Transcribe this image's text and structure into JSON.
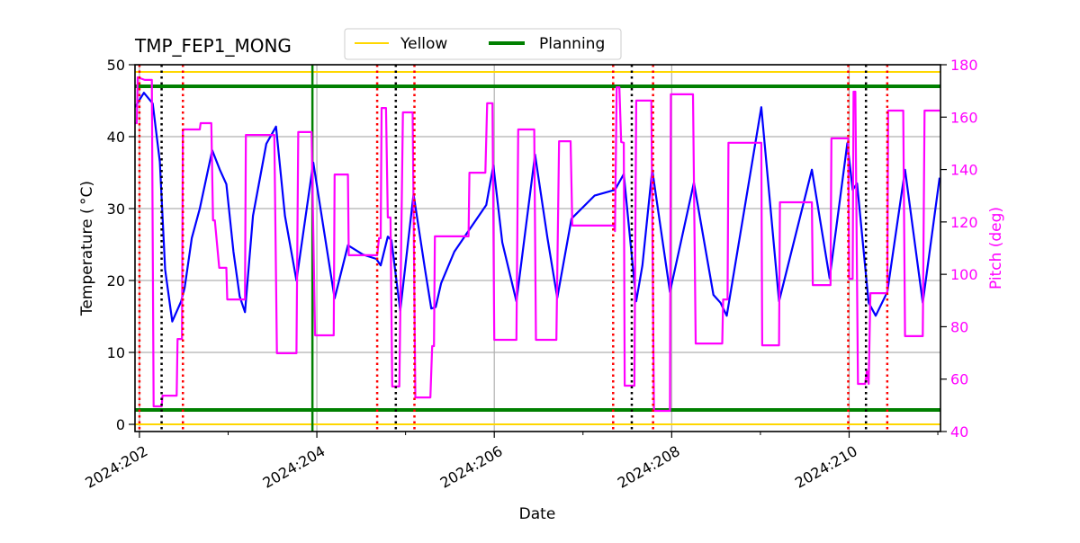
{
  "chart_data": {
    "type": "line",
    "title": "TMP_FEP1_MONG",
    "xlabel": "Date",
    "ylabel": "Temperature ($^\\circ$C)",
    "ylabel_display": "Temperature ( °C)",
    "y2label": "Pitch (deg)",
    "xlim": [
      201.95,
      211.03
    ],
    "ylim": [
      -1,
      50
    ],
    "y2lim": [
      40,
      180
    ],
    "x_ticks": [
      202,
      204,
      206,
      208,
      210
    ],
    "x_minor_ticks": [
      203,
      205,
      207,
      209,
      211
    ],
    "x_tick_labels": [
      "2024:202",
      "2024:204",
      "2024:206",
      "2024:208",
      "2024:210"
    ],
    "y_ticks": [
      0,
      10,
      20,
      30,
      40,
      50
    ],
    "y_tick_labels": [
      "0",
      "10",
      "20",
      "30",
      "40",
      "50"
    ],
    "y2_ticks": [
      40,
      60,
      80,
      100,
      120,
      140,
      160,
      180
    ],
    "y2_tick_labels": [
      "40",
      "60",
      "80",
      "100",
      "120",
      "140",
      "160",
      "180"
    ],
    "grid": true,
    "legend": {
      "placement": "top-center",
      "entries": [
        {
          "label": "Yellow",
          "color": "#ffd700"
        },
        {
          "label": "Planning",
          "color": "#008000"
        }
      ]
    },
    "limit_lines": [
      {
        "name": "Yellow",
        "values": [
          49,
          0
        ],
        "color": "#ffd700"
      },
      {
        "name": "Planning",
        "values": [
          47,
          2
        ],
        "color": "#008000"
      }
    ],
    "vertical_markers": {
      "red_dotted": [
        202.0,
        202.49,
        204.68,
        205.1,
        207.34,
        207.79,
        209.99,
        210.43
      ],
      "black_dotted": [
        202.25,
        204.89,
        207.55,
        210.19
      ],
      "green_solid": [
        203.95
      ]
    },
    "colors": {
      "temperature": "#0000ff",
      "pitch": "#ff00ff",
      "red_marker": "#ff0000",
      "black_marker": "#000000",
      "green_marker": "#008000",
      "grid": "#b0b0b0"
    },
    "series": [
      {
        "axis": "left",
        "color": "#0000ff",
        "points": [
          [
            201.95,
            44.1
          ],
          [
            202.05,
            46.1
          ],
          [
            202.15,
            44.6
          ],
          [
            202.23,
            36.5
          ],
          [
            202.29,
            21.5
          ],
          [
            202.37,
            14.3
          ],
          [
            202.47,
            17.1
          ],
          [
            202.51,
            19.0
          ],
          [
            202.59,
            25.9
          ],
          [
            202.68,
            30.0
          ],
          [
            202.82,
            38.1
          ],
          [
            202.91,
            35.3
          ],
          [
            202.98,
            33.4
          ],
          [
            203.06,
            24.0
          ],
          [
            203.13,
            17.8
          ],
          [
            203.19,
            15.6
          ],
          [
            203.28,
            29.0
          ],
          [
            203.43,
            39.0
          ],
          [
            203.54,
            41.4
          ],
          [
            203.64,
            29.0
          ],
          [
            203.77,
            20.0
          ],
          [
            203.96,
            36.4
          ],
          [
            204.2,
            17.5
          ],
          [
            204.35,
            24.9
          ],
          [
            204.52,
            23.6
          ],
          [
            204.67,
            23.0
          ],
          [
            204.72,
            22.1
          ],
          [
            204.8,
            26.1
          ],
          [
            204.84,
            25.6
          ],
          [
            204.94,
            15.8
          ],
          [
            205.09,
            32.0
          ],
          [
            205.22,
            21.5
          ],
          [
            205.29,
            16.1
          ],
          [
            205.34,
            16.3
          ],
          [
            205.4,
            19.6
          ],
          [
            205.55,
            24.0
          ],
          [
            205.71,
            26.9
          ],
          [
            205.91,
            30.5
          ],
          [
            205.99,
            36.0
          ],
          [
            206.09,
            25.3
          ],
          [
            206.25,
            17.1
          ],
          [
            206.46,
            37.5
          ],
          [
            206.6,
            25.9
          ],
          [
            206.71,
            17.6
          ],
          [
            206.87,
            28.6
          ],
          [
            207.13,
            31.8
          ],
          [
            207.36,
            32.6
          ],
          [
            207.46,
            34.8
          ],
          [
            207.6,
            17.1
          ],
          [
            207.67,
            22.1
          ],
          [
            207.78,
            35.4
          ],
          [
            207.98,
            18.4
          ],
          [
            208.25,
            33.6
          ],
          [
            208.47,
            18.0
          ],
          [
            208.55,
            16.9
          ],
          [
            208.62,
            15.1
          ],
          [
            209.01,
            44.1
          ],
          [
            209.21,
            17.1
          ],
          [
            209.58,
            35.4
          ],
          [
            209.78,
            20.3
          ],
          [
            209.98,
            39.1
          ],
          [
            210.04,
            32.6
          ],
          [
            210.09,
            33.5
          ],
          [
            210.22,
            16.9
          ],
          [
            210.3,
            15.1
          ],
          [
            210.43,
            18.4
          ],
          [
            210.63,
            35.4
          ],
          [
            210.83,
            16.9
          ],
          [
            211.02,
            34.3
          ]
        ]
      },
      {
        "axis": "right",
        "color": "#ff00ff",
        "points": [
          [
            201.95,
            157.7
          ],
          [
            201.97,
            157.7
          ],
          [
            201.98,
            175.2
          ],
          [
            202.06,
            174.2
          ],
          [
            202.14,
            174.2
          ],
          [
            202.16,
            49.6
          ],
          [
            202.25,
            49.6
          ],
          [
            202.26,
            53.7
          ],
          [
            202.42,
            53.7
          ],
          [
            202.43,
            75.3
          ],
          [
            202.48,
            75.3
          ],
          [
            202.49,
            155.3
          ],
          [
            202.68,
            155.3
          ],
          [
            202.69,
            157.7
          ],
          [
            202.81,
            157.7
          ],
          [
            202.83,
            120.6
          ],
          [
            202.85,
            120.6
          ],
          [
            202.9,
            102.5
          ],
          [
            202.98,
            102.5
          ],
          [
            202.99,
            90.4
          ],
          [
            203.19,
            90.4
          ],
          [
            203.2,
            153.2
          ],
          [
            203.52,
            153.2
          ],
          [
            203.55,
            69.9
          ],
          [
            203.77,
            69.9
          ],
          [
            203.79,
            154.3
          ],
          [
            203.94,
            154.3
          ],
          [
            203.98,
            76.7
          ],
          [
            204.19,
            76.7
          ],
          [
            204.2,
            138.1
          ],
          [
            204.35,
            138.1
          ],
          [
            204.36,
            107.3
          ],
          [
            204.68,
            107.3
          ],
          [
            204.7,
            113.8
          ],
          [
            204.72,
            113.8
          ],
          [
            204.73,
            163.5
          ],
          [
            204.78,
            163.5
          ],
          [
            204.8,
            121.7
          ],
          [
            204.83,
            121.7
          ],
          [
            204.85,
            57.2
          ],
          [
            204.93,
            57.2
          ],
          [
            204.97,
            161.8
          ],
          [
            205.08,
            161.8
          ],
          [
            205.11,
            53.0
          ],
          [
            205.28,
            53.0
          ],
          [
            205.3,
            72.6
          ],
          [
            205.32,
            72.6
          ],
          [
            205.33,
            114.5
          ],
          [
            205.71,
            114.5
          ],
          [
            205.72,
            138.8
          ],
          [
            205.9,
            138.8
          ],
          [
            205.92,
            165.3
          ],
          [
            205.98,
            165.3
          ],
          [
            206.0,
            75.0
          ],
          [
            206.25,
            75.0
          ],
          [
            206.27,
            155.3
          ],
          [
            206.45,
            155.3
          ],
          [
            206.47,
            75.0
          ],
          [
            206.7,
            75.0
          ],
          [
            206.73,
            150.8
          ],
          [
            206.86,
            150.8
          ],
          [
            206.88,
            118.6
          ],
          [
            207.35,
            118.6
          ],
          [
            207.36,
            116.5
          ],
          [
            207.38,
            171.4
          ],
          [
            207.41,
            171.4
          ],
          [
            207.43,
            150.5
          ],
          [
            207.46,
            150.2
          ],
          [
            207.47,
            57.5
          ],
          [
            207.58,
            57.5
          ],
          [
            207.6,
            166.3
          ],
          [
            207.77,
            166.3
          ],
          [
            207.8,
            47.9
          ],
          [
            207.98,
            47.9
          ],
          [
            207.99,
            168.7
          ],
          [
            208.24,
            168.7
          ],
          [
            208.27,
            73.6
          ],
          [
            208.57,
            73.6
          ],
          [
            208.58,
            90.4
          ],
          [
            208.63,
            90.4
          ],
          [
            208.64,
            150.2
          ],
          [
            209.01,
            150.2
          ],
          [
            209.02,
            72.9
          ],
          [
            209.21,
            72.9
          ],
          [
            209.22,
            127.5
          ],
          [
            209.58,
            127.5
          ],
          [
            209.59,
            95.9
          ],
          [
            209.79,
            95.9
          ],
          [
            209.8,
            151.9
          ],
          [
            209.99,
            151.9
          ],
          [
            210.0,
            98.3
          ],
          [
            210.04,
            98.3
          ],
          [
            210.05,
            169.7
          ],
          [
            210.07,
            169.7
          ],
          [
            210.1,
            58.2
          ],
          [
            210.18,
            58.2
          ],
          [
            210.2,
            63.0
          ],
          [
            210.22,
            58.2
          ],
          [
            210.24,
            92.8
          ],
          [
            210.43,
            92.8
          ],
          [
            210.44,
            162.5
          ],
          [
            210.61,
            162.5
          ],
          [
            210.63,
            76.4
          ],
          [
            210.83,
            76.4
          ],
          [
            210.85,
            162.5
          ],
          [
            211.02,
            162.5
          ]
        ]
      }
    ]
  }
}
